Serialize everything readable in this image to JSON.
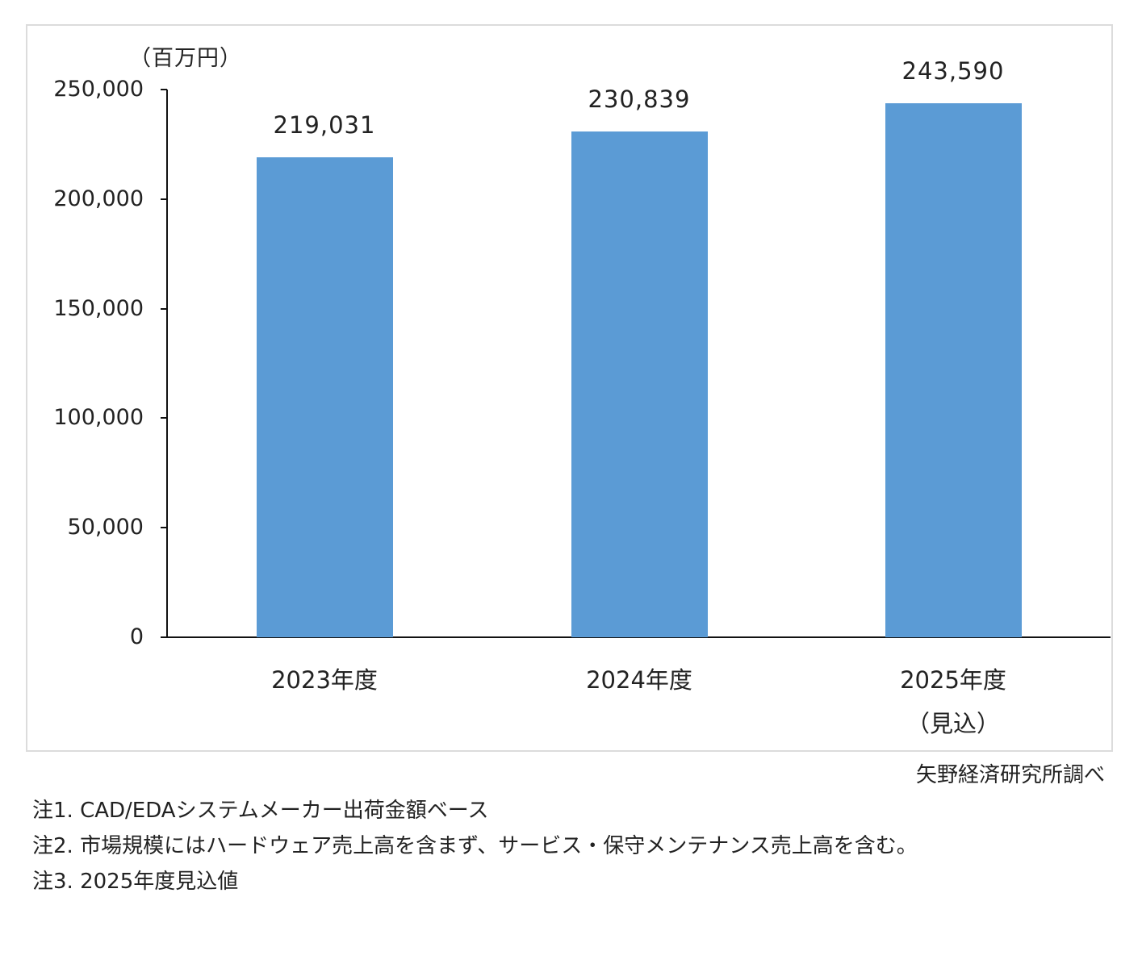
{
  "chart_data": {
    "type": "bar",
    "title": "",
    "unit_label": "（百万円）",
    "xlabel": "",
    "ylabel": "（百万円）",
    "categories": [
      "2023年度",
      "2024年度",
      "2025年度"
    ],
    "category_sublabels": [
      "",
      "",
      "（見込）"
    ],
    "values": [
      219031,
      230839,
      243590
    ],
    "value_labels": [
      "219,031",
      "230,839",
      "243,590"
    ],
    "ylim": [
      0,
      250000
    ],
    "yticks": [
      0,
      50000,
      100000,
      150000,
      200000,
      250000
    ],
    "ytick_labels": [
      "0",
      "50,000",
      "100,000",
      "150,000",
      "200,000",
      "250,000"
    ],
    "grid": false,
    "legend": null,
    "bar_color": "#5b9bd5"
  },
  "source": "矢野経済研究所調べ",
  "notes": [
    "注1.  CAD/EDAシステムメーカー出荷金額ベース",
    "注2.  市場規模にはハードウェア売上高を含まず、サービス・保守メンテナンス売上高を含む。",
    "注3.  2025年度見込値"
  ]
}
